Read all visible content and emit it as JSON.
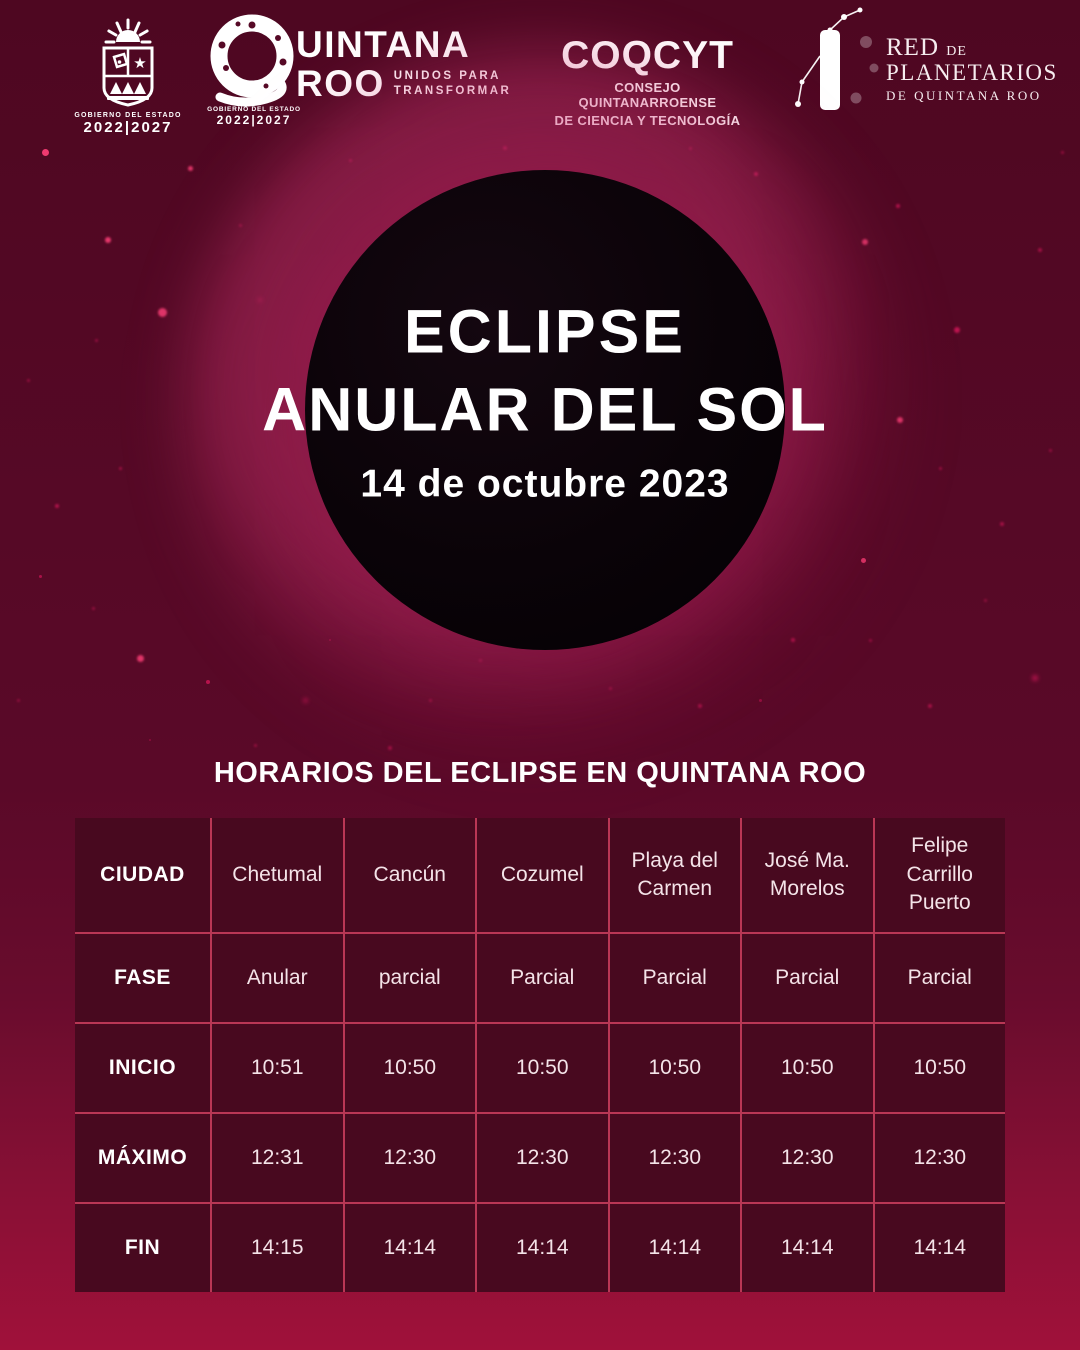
{
  "header": {
    "logos": {
      "gobierno_crest": {
        "sub1": "GOBIERNO DEL ESTADO",
        "sub2": "2022|2027"
      },
      "quintana_roo": {
        "word_rest": "UINTANA",
        "word2": "ROO",
        "tagline1": "UNIDOS PARA",
        "tagline2": "TRANSFORMAR",
        "sub1": "GOBIERNO DEL ESTADO",
        "sub2": "2022|2027"
      },
      "coqcyt": {
        "title": "COQCYT",
        "sub1": "CONSEJO QUINTANARROENSE",
        "sub2": "DE CIENCIA Y TECNOLOGÍA"
      },
      "planetarios": {
        "word1": "RED",
        "word1b": "DE",
        "word2": "PLANETARIOS",
        "word3": "DE QUINTANA ROO"
      }
    }
  },
  "eclipse": {
    "title_line1": "ECLIPSE",
    "title_line2": "ANULAR DEL SOL",
    "date": "14 de octubre 2023"
  },
  "section_title": "HORARIOS DEL ECLIPSE EN QUINTANA ROO",
  "table": {
    "header_label": "CIUDAD",
    "cities": [
      "Chetumal",
      "Cancún",
      "Cozumel",
      "Playa del Carmen",
      "José Ma. Morelos",
      "Felipe Carrillo Puerto"
    ],
    "rows": [
      {
        "label": "FASE",
        "values": [
          "Anular",
          "parcial",
          "Parcial",
          "Parcial",
          "Parcial",
          "Parcial"
        ]
      },
      {
        "label": "INICIO",
        "values": [
          "10:51",
          "10:50",
          "10:50",
          "10:50",
          "10:50",
          "10:50"
        ]
      },
      {
        "label": "MÁXIMO",
        "values": [
          "12:31",
          "12:30",
          "12:30",
          "12:30",
          "12:30",
          "12:30"
        ]
      },
      {
        "label": "FIN",
        "values": [
          "14:15",
          "14:14",
          "14:14",
          "14:14",
          "14:14",
          "14:14"
        ]
      }
    ]
  },
  "colors": {
    "background_top": "#4e0721",
    "background_bottom": "#a0113a",
    "table_cell": "#48091f",
    "table_grid_line": "#b93755",
    "star": "#d6175a",
    "star_bright": "#ef3a70",
    "eclipse_glow": "#e95a8c",
    "text": "#ffffff"
  }
}
